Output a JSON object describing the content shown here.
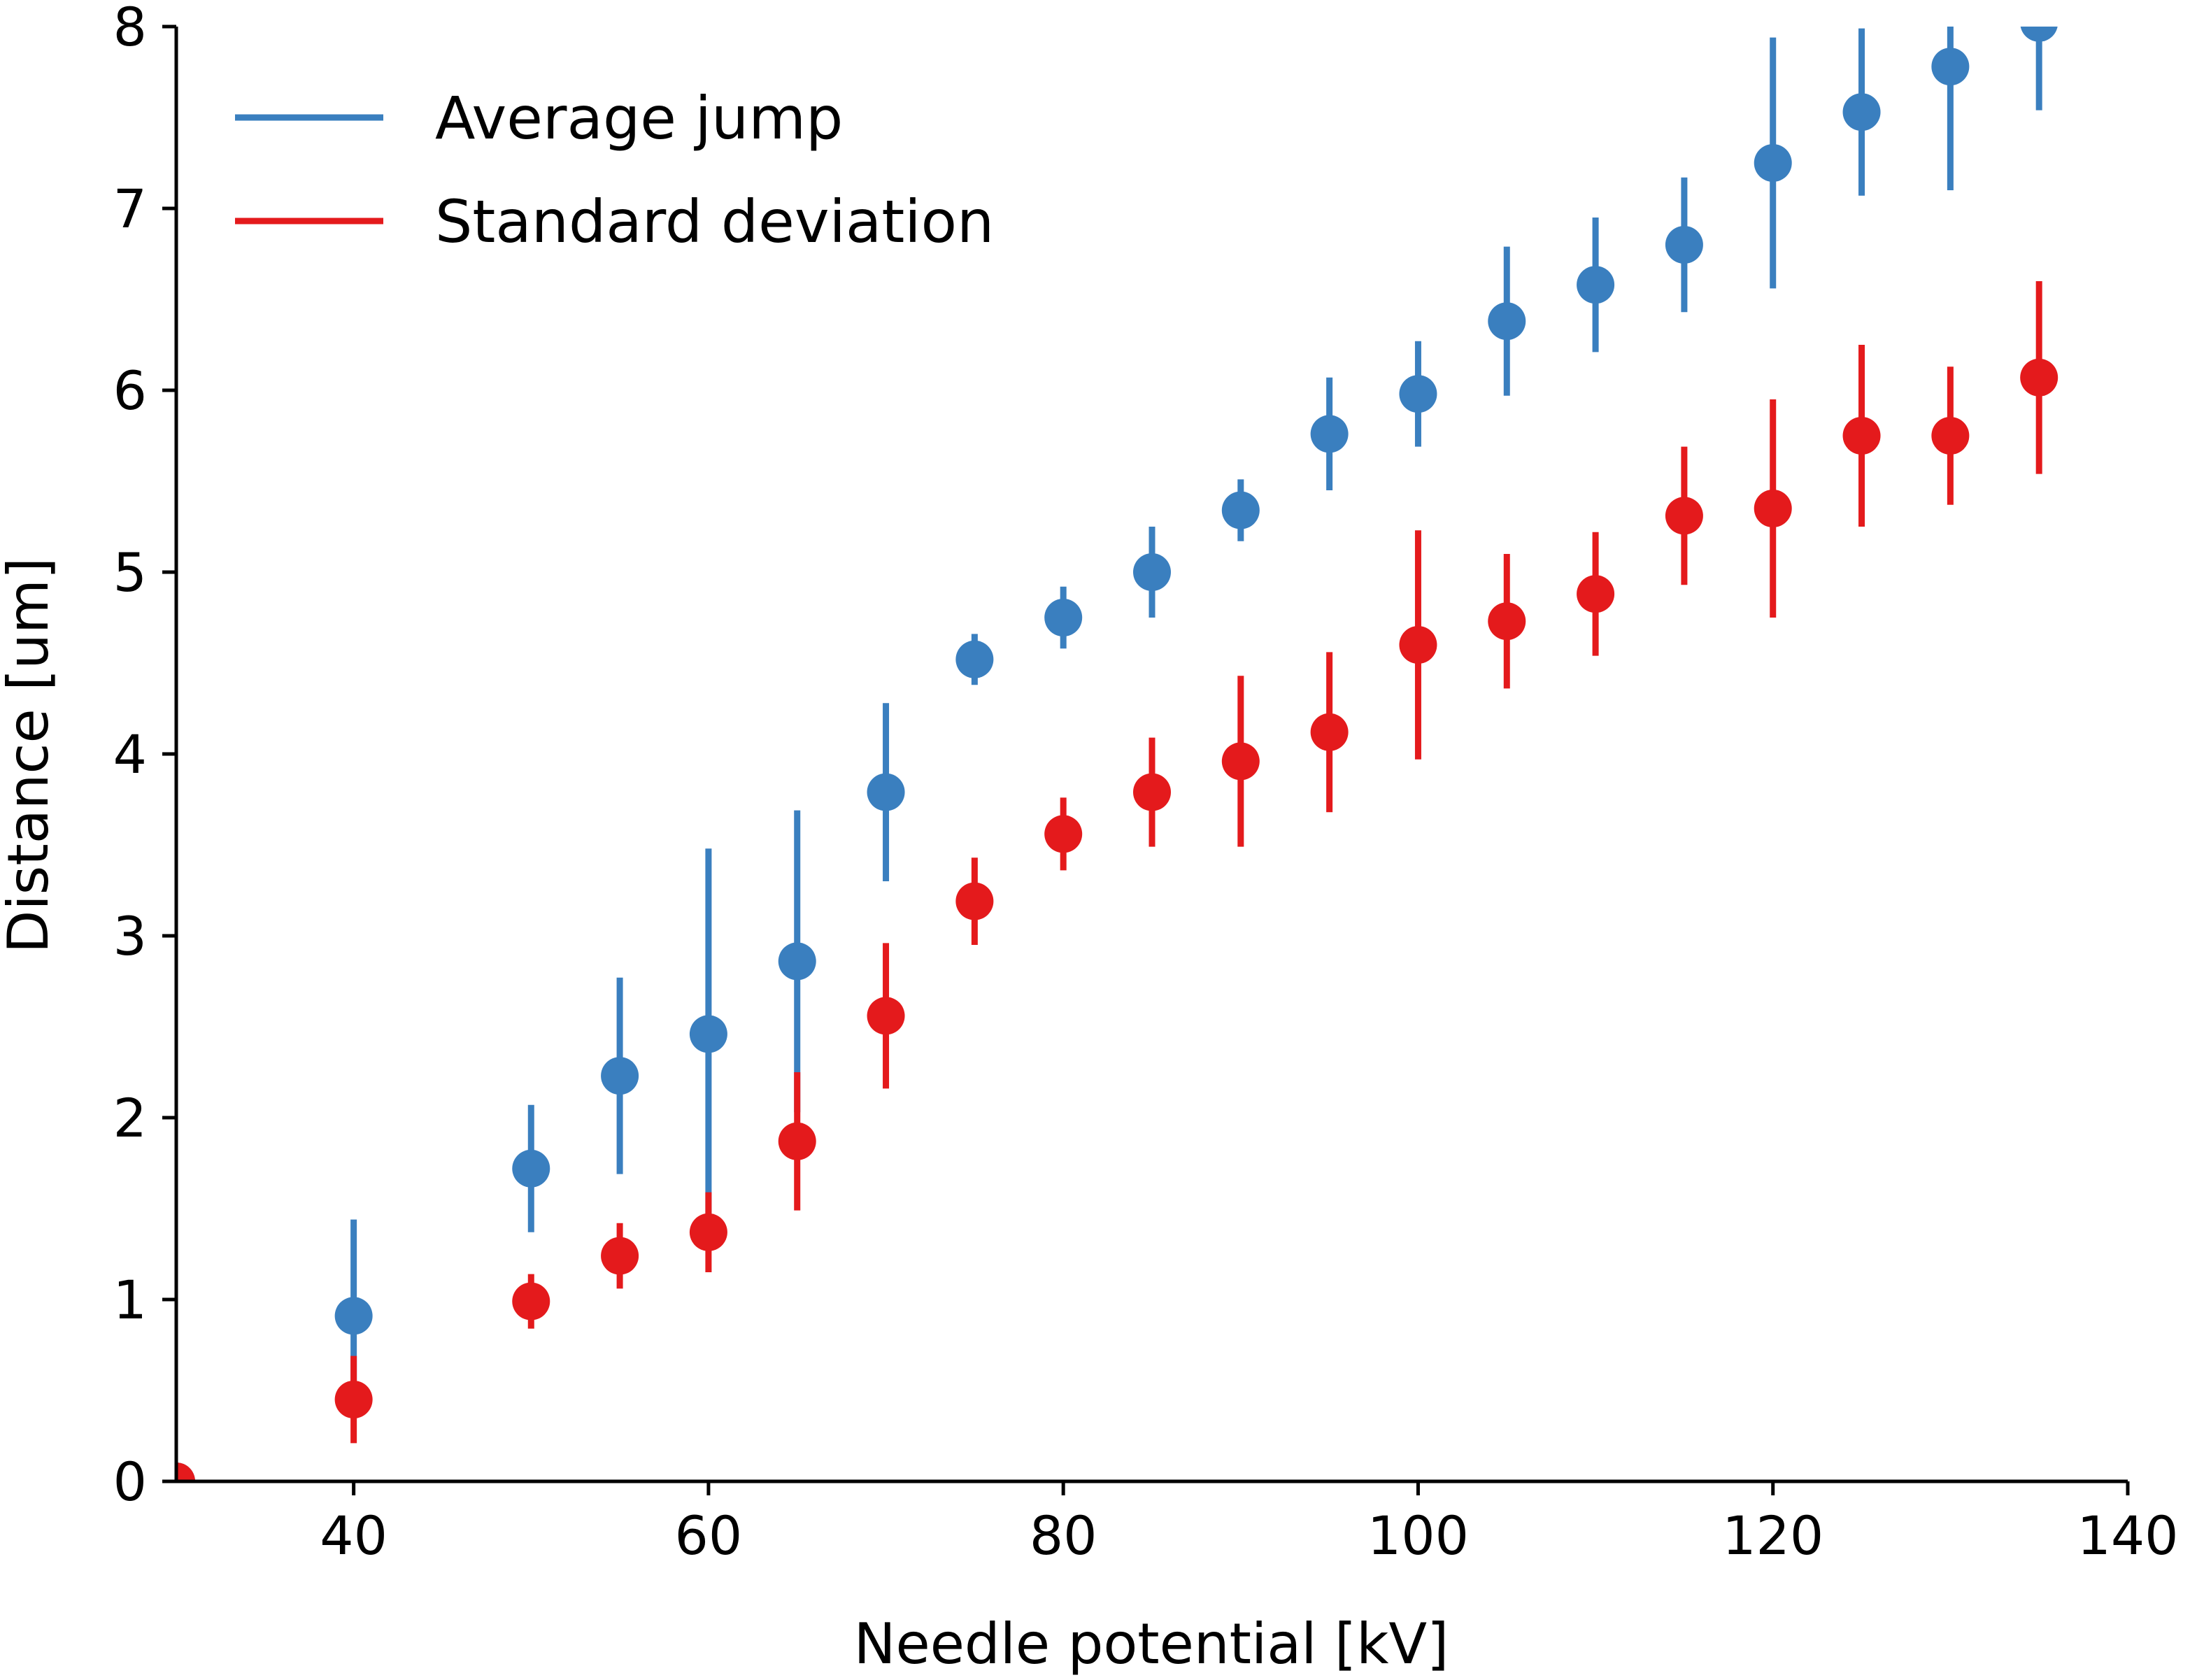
{
  "chart_data": {
    "type": "scatter",
    "title": "",
    "xlabel": "Needle potential [kV]",
    "ylabel": "Distance [um]",
    "xlim": [
      30,
      140
    ],
    "ylim": [
      0,
      8
    ],
    "xticks": [
      40,
      60,
      80,
      100,
      120,
      140
    ],
    "yticks": [
      0,
      1,
      2,
      3,
      4,
      5,
      6,
      7,
      8
    ],
    "grid": false,
    "legend_position": "top-left",
    "series": [
      {
        "name": "Average jump",
        "color": "#3a7fbf",
        "x": [
          30,
          40,
          50,
          55,
          60,
          65,
          70,
          75,
          80,
          85,
          90,
          95,
          100,
          105,
          110,
          115,
          120,
          125,
          130,
          135
        ],
        "y": [
          0.0,
          0.91,
          1.72,
          2.23,
          2.46,
          2.86,
          3.79,
          4.52,
          4.75,
          5.0,
          5.34,
          5.76,
          5.98,
          6.38,
          6.58,
          6.8,
          7.25,
          7.53,
          7.78,
          8.02
        ],
        "error": [
          0.0,
          0.53,
          0.35,
          0.54,
          1.02,
          0.83,
          0.49,
          0.14,
          0.17,
          0.25,
          0.17,
          0.31,
          0.29,
          0.41,
          0.37,
          0.37,
          0.69,
          0.46,
          0.68,
          0.48
        ]
      },
      {
        "name": "Standard deviation",
        "color": "#e41a1c",
        "x": [
          30,
          40,
          50,
          55,
          60,
          65,
          70,
          75,
          80,
          85,
          90,
          95,
          100,
          105,
          110,
          115,
          120,
          125,
          130,
          135
        ],
        "y": [
          0.0,
          0.45,
          0.99,
          1.24,
          1.37,
          1.87,
          2.56,
          3.19,
          3.56,
          3.79,
          3.96,
          4.12,
          4.6,
          4.73,
          4.88,
          5.31,
          5.35,
          5.75,
          5.75,
          6.07
        ],
        "error": [
          0.0,
          0.24,
          0.15,
          0.18,
          0.22,
          0.38,
          0.4,
          0.24,
          0.2,
          0.3,
          0.47,
          0.44,
          0.63,
          0.37,
          0.34,
          0.38,
          0.6,
          0.5,
          0.38,
          0.53
        ]
      }
    ]
  }
}
